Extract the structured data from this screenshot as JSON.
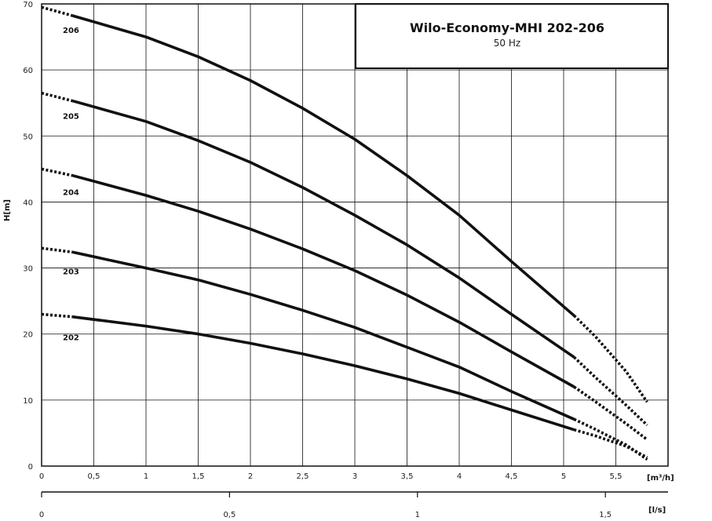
{
  "chart_data": {
    "type": "line",
    "title": "Wilo-Economy-MHI 202-206",
    "subtitle": "50 Hz",
    "ylabel": "H[m]",
    "x_unit_label": "[m³/h]",
    "x2_unit_label": "[l/s]",
    "xlim": [
      0,
      6
    ],
    "ylim": [
      0,
      70
    ],
    "x_ticks": [
      "0",
      "0,5",
      "1",
      "1,5",
      "2",
      "2,5",
      "3",
      "3,5",
      "4",
      "4,5",
      "5",
      "5,5"
    ],
    "x_tick_values": [
      0,
      0.5,
      1,
      1.5,
      2,
      2.5,
      3,
      3.5,
      4,
      4.5,
      5,
      5.5
    ],
    "y_ticks": [
      "0",
      "10",
      "20",
      "30",
      "40",
      "50",
      "60",
      "70"
    ],
    "y_tick_values": [
      0,
      10,
      20,
      30,
      40,
      50,
      60,
      70
    ],
    "x2_ticks": [
      "0",
      "0,5",
      "1",
      "1,5"
    ],
    "x2_tick_values": [
      0,
      0.5,
      1,
      1.5
    ],
    "grid": true,
    "series": [
      {
        "name": "202",
        "points": [
          [
            0,
            23
          ],
          [
            0.3,
            22.6
          ],
          [
            1,
            21.2
          ],
          [
            1.5,
            20
          ],
          [
            2,
            18.6
          ],
          [
            2.5,
            17
          ],
          [
            3,
            15.2
          ],
          [
            3.5,
            13.2
          ],
          [
            4,
            11
          ],
          [
            4.5,
            8.5
          ],
          [
            5.1,
            5.5
          ],
          [
            5.3,
            4.6
          ],
          [
            5.6,
            3
          ],
          [
            5.8,
            1.3
          ]
        ],
        "solid_range": [
          0.3,
          5.1
        ]
      },
      {
        "name": "203",
        "points": [
          [
            0,
            33
          ],
          [
            0.3,
            32.4
          ],
          [
            1,
            30
          ],
          [
            1.5,
            28.2
          ],
          [
            2,
            26
          ],
          [
            2.5,
            23.6
          ],
          [
            3,
            21
          ],
          [
            3.5,
            18
          ],
          [
            4,
            15
          ],
          [
            4.5,
            11.3
          ],
          [
            5.1,
            7.1
          ],
          [
            5.3,
            5.6
          ],
          [
            5.6,
            3.2
          ],
          [
            5.8,
            1
          ]
        ],
        "solid_range": [
          0.3,
          5.1
        ]
      },
      {
        "name": "204",
        "points": [
          [
            0,
            45
          ],
          [
            0.3,
            44
          ],
          [
            1,
            41
          ],
          [
            1.5,
            38.6
          ],
          [
            2,
            35.9
          ],
          [
            2.5,
            32.9
          ],
          [
            3,
            29.6
          ],
          [
            3.5,
            25.9
          ],
          [
            4,
            21.8
          ],
          [
            4.5,
            17.3
          ],
          [
            5.1,
            12
          ],
          [
            5.3,
            9.8
          ],
          [
            5.6,
            6.4
          ],
          [
            5.8,
            4
          ]
        ],
        "solid_range": [
          0.3,
          5.1
        ]
      },
      {
        "name": "205",
        "points": [
          [
            0,
            56.5
          ],
          [
            0.3,
            55.3
          ],
          [
            1,
            52.2
          ],
          [
            1.5,
            49.3
          ],
          [
            2,
            46
          ],
          [
            2.5,
            42.2
          ],
          [
            3,
            38
          ],
          [
            3.5,
            33.5
          ],
          [
            4,
            28.5
          ],
          [
            4.5,
            23
          ],
          [
            5.1,
            16.5
          ],
          [
            5.3,
            13.5
          ],
          [
            5.6,
            9.2
          ],
          [
            5.8,
            6.2
          ]
        ],
        "solid_range": [
          0.3,
          5.1
        ]
      },
      {
        "name": "206",
        "points": [
          [
            0,
            69.5
          ],
          [
            0.3,
            68.2
          ],
          [
            1,
            65
          ],
          [
            1.5,
            62
          ],
          [
            2,
            58.4
          ],
          [
            2.5,
            54.2
          ],
          [
            3,
            49.5
          ],
          [
            3.5,
            44
          ],
          [
            4,
            38
          ],
          [
            4.5,
            31
          ],
          [
            5.1,
            22.8
          ],
          [
            5.3,
            19.7
          ],
          [
            5.6,
            14.3
          ],
          [
            5.8,
            9.7
          ]
        ],
        "solid_range": [
          0.3,
          5.1
        ]
      }
    ]
  }
}
